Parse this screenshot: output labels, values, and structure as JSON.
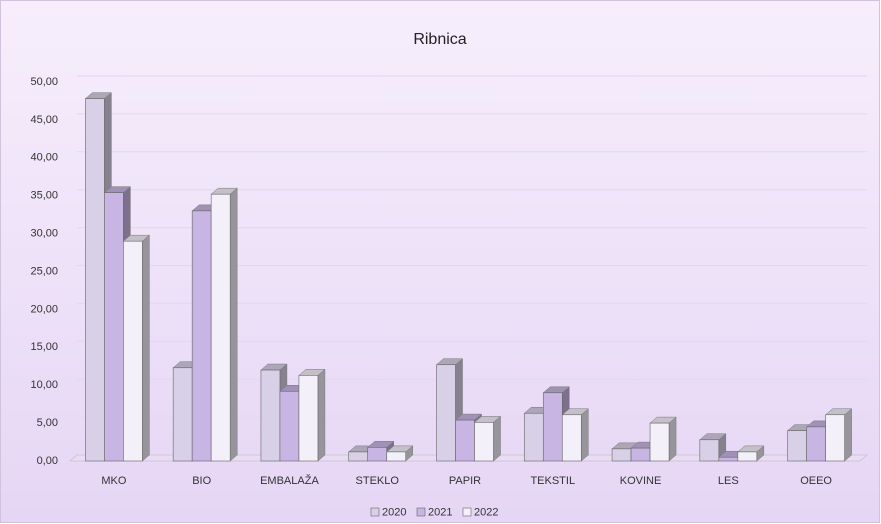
{
  "chart_data": {
    "type": "bar",
    "title": "Ribnica",
    "categories": [
      "MKO",
      "BIO",
      "EMBALAŽA",
      "STEKLO",
      "PAPIR",
      "TEKSTIL",
      "KOVINE",
      "LES",
      "OEEO"
    ],
    "series": [
      {
        "name": "2020",
        "color": "#d8d0e6",
        "values": [
          47.8,
          12.3,
          12.0,
          1.2,
          12.7,
          6.3,
          1.6,
          2.8,
          4.0
        ]
      },
      {
        "name": "2021",
        "color": "#c8b5e3",
        "values": [
          35.4,
          33.0,
          9.2,
          1.8,
          5.4,
          9.0,
          1.7,
          0.5,
          4.5
        ]
      },
      {
        "name": "2022",
        "color": "#f4f0fa",
        "values": [
          29.0,
          35.2,
          11.3,
          1.2,
          5.1,
          6.1,
          5.0,
          1.2,
          6.1
        ]
      }
    ],
    "ylim": [
      0,
      50
    ],
    "yticks": [
      {
        "value": 0,
        "label": "0,00"
      },
      {
        "value": 5,
        "label": "5,00"
      },
      {
        "value": 10,
        "label": "10,00"
      },
      {
        "value": 15,
        "label": "15,00"
      },
      {
        "value": 20,
        "label": "20,00"
      },
      {
        "value": 25,
        "label": "25,00"
      },
      {
        "value": 30,
        "label": "30,00"
      },
      {
        "value": 35,
        "label": "35,00"
      },
      {
        "value": 40,
        "label": "40,00"
      },
      {
        "value": 45,
        "label": "45,00"
      },
      {
        "value": 50,
        "label": "50,00"
      }
    ],
    "grid": true,
    "legend": "bottom"
  }
}
